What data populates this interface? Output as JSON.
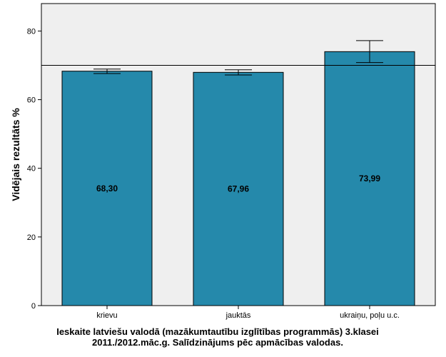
{
  "chart_data": {
    "type": "bar",
    "categories": [
      "krievu",
      "jauktās",
      "ukraiņu, poļu u.c."
    ],
    "values": [
      68.3,
      67.96,
      73.99
    ],
    "value_labels": [
      "68,30",
      "67,96",
      "73,99"
    ],
    "error_bars": [
      {
        "low": 67.6,
        "high": 68.9
      },
      {
        "low": 67.2,
        "high": 68.7
      },
      {
        "low": 70.8,
        "high": 77.2
      }
    ],
    "reference_line": 70,
    "ylabel": "Vidējais rezultāts %",
    "xlabel_line1": "Ieskaite latviešu valodā (mazākumtautību izglītības programmās) 3.klasei",
    "xlabel_line2": "2011./2012.māc.g. Salīdzinājums pēc apmācības valodas.",
    "ylim": [
      0,
      88
    ],
    "yticks": [
      0,
      20,
      40,
      60,
      80
    ],
    "ytick_labels": [
      "0",
      "20",
      "40",
      "60",
      "80"
    ],
    "colors": {
      "bar_fill": "#2589ab",
      "plot_background": "#efefef",
      "axis": "#000000"
    },
    "grid": false
  }
}
